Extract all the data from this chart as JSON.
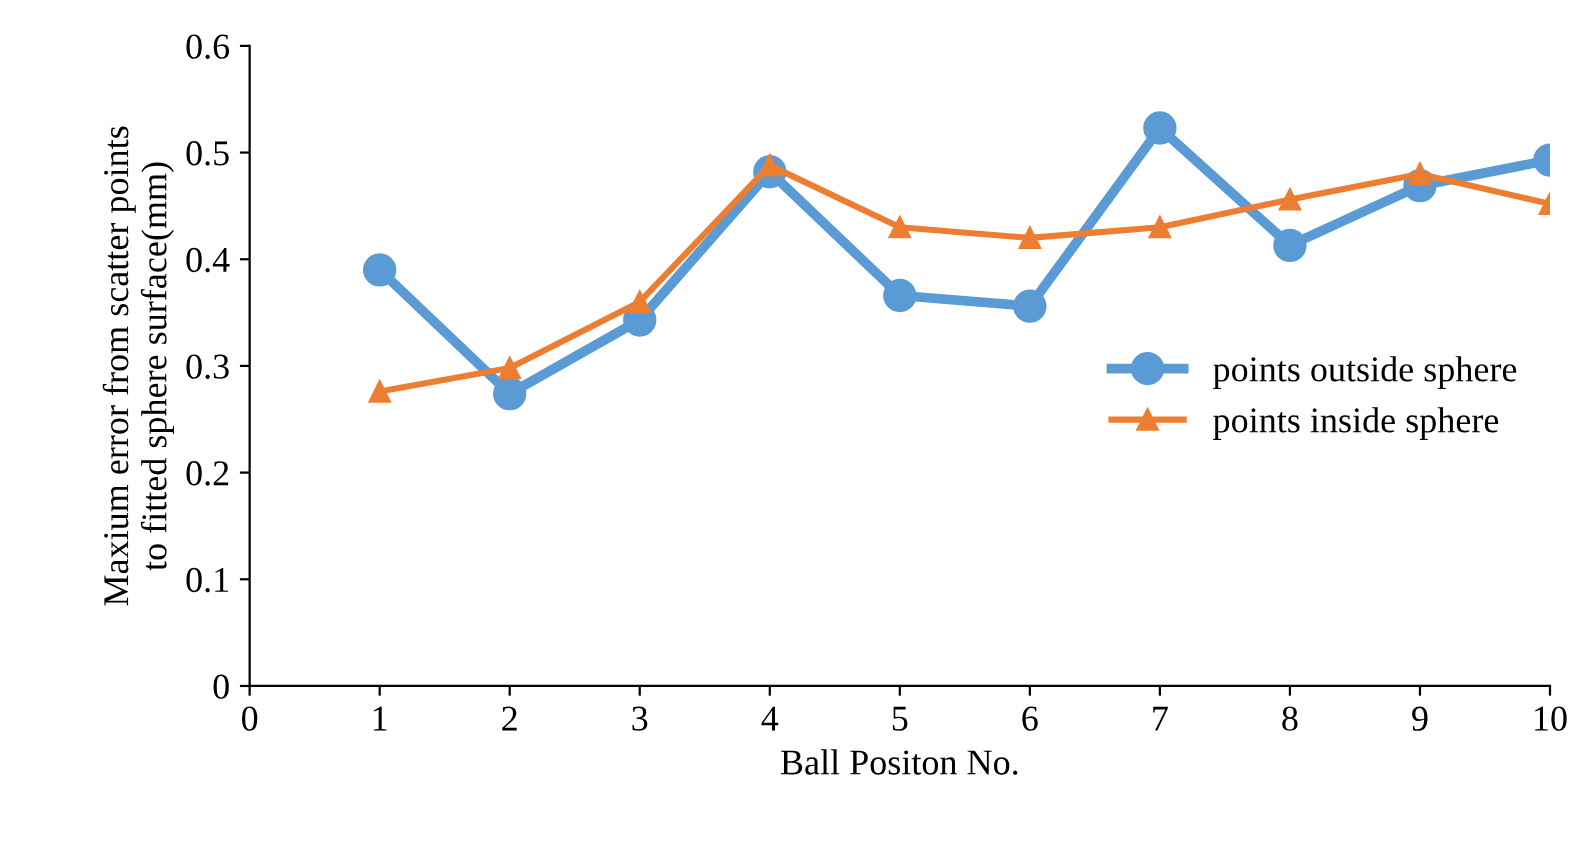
{
  "chart_data": {
    "type": "line",
    "xlabel": "Ball Positon No.",
    "ylabel": "Maxium error from scatter points\nto fitted sphere surface(mm)",
    "x": [
      1,
      2,
      3,
      4,
      5,
      6,
      7,
      8,
      9,
      10
    ],
    "series": [
      {
        "name": "points outside sphere",
        "color": "#5b9bd5",
        "marker": "circle",
        "values": [
          0.39,
          0.274,
          0.343,
          0.482,
          0.366,
          0.356,
          0.523,
          0.413,
          0.469,
          0.493
        ]
      },
      {
        "name": "points inside sphere",
        "color": "#ed7d31",
        "marker": "triangle",
        "values": [
          0.276,
          0.298,
          0.36,
          0.488,
          0.43,
          0.42,
          0.43,
          0.456,
          0.48,
          0.452
        ]
      }
    ],
    "xlim": [
      0,
      10
    ],
    "xticks": [
      0,
      1,
      2,
      3,
      4,
      5,
      6,
      7,
      8,
      9,
      10
    ],
    "ylim": [
      0,
      0.6
    ],
    "yticks": [
      0,
      0.1,
      0.2,
      0.3,
      0.4,
      0.5,
      0.6
    ],
    "grid": false,
    "legend": "center right",
    "line_style": "solid"
  }
}
